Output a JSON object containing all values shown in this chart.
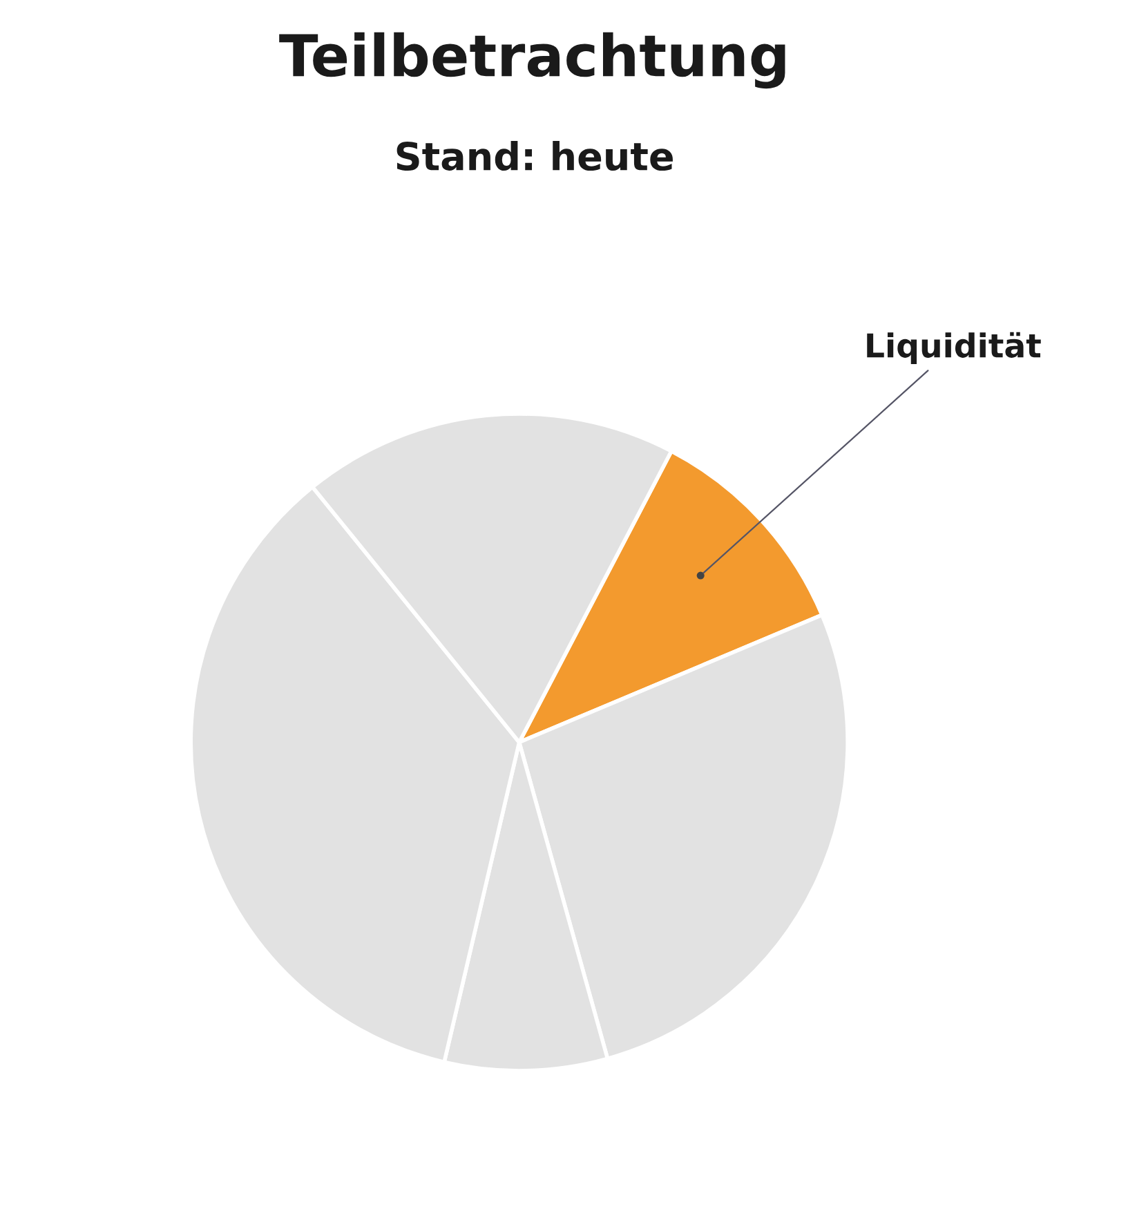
{
  "chart_data": {
    "type": "pie",
    "title": "Teilbetrachtung",
    "subtitle": "Stand: heute",
    "categories": [
      "Liquidität",
      null,
      null,
      null,
      null
    ],
    "values": [
      11,
      27,
      8,
      35.5,
      18.5
    ],
    "colors": [
      "#f39a2e",
      "#e2e2e2",
      "#e2e2e2",
      "#e2e2e2",
      "#e2e2e2"
    ]
  }
}
